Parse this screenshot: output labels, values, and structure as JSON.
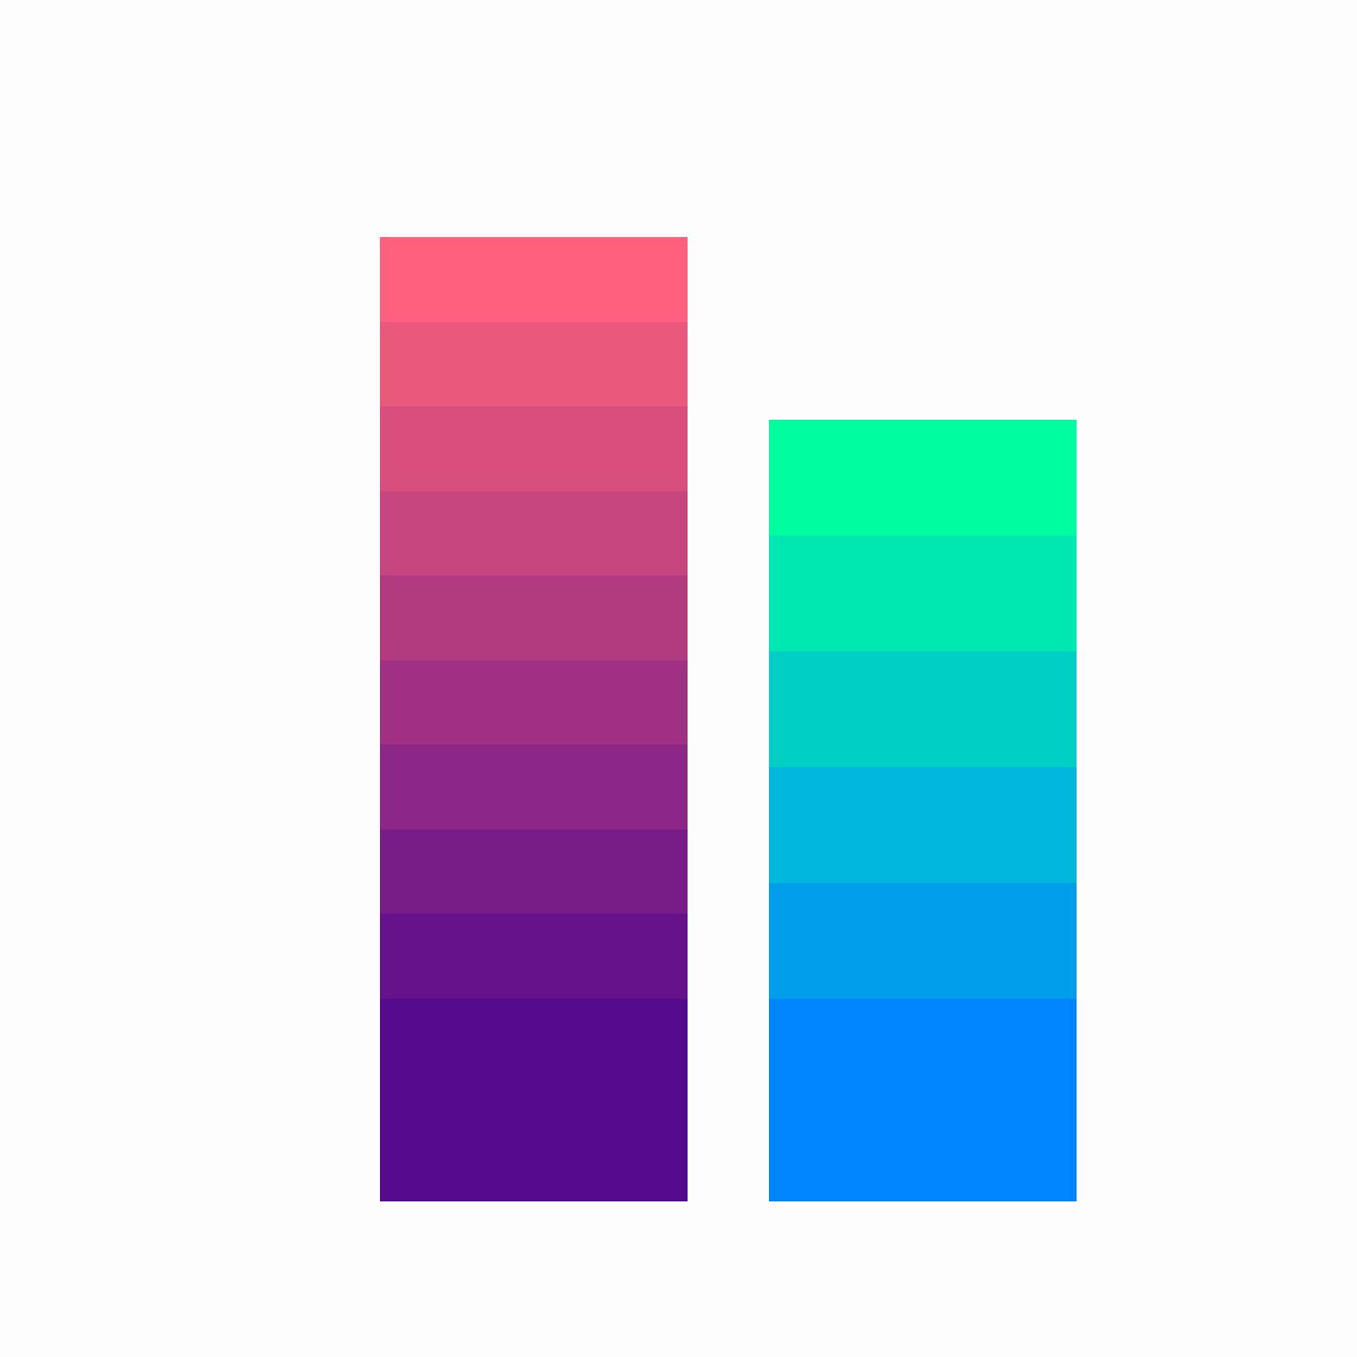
{
  "artwork": {
    "left_column": {
      "bands": [
        {
          "color": "#FF607D",
          "weight": 1
        },
        {
          "color": "#EA587C",
          "weight": 1
        },
        {
          "color": "#DA4E7D",
          "weight": 1
        },
        {
          "color": "#C7467F",
          "weight": 1
        },
        {
          "color": "#B23A7F",
          "weight": 1
        },
        {
          "color": "#A03082",
          "weight": 1
        },
        {
          "color": "#8D2787",
          "weight": 1
        },
        {
          "color": "#781D87",
          "weight": 1
        },
        {
          "color": "#66128B",
          "weight": 1
        },
        {
          "color": "#560A8E",
          "weight": 2.4
        }
      ]
    },
    "right_column": {
      "bands": [
        {
          "color": "#00FE9F",
          "weight": 1
        },
        {
          "color": "#00E8B2",
          "weight": 1
        },
        {
          "color": "#00CFC6",
          "weight": 1
        },
        {
          "color": "#00B8DB",
          "weight": 1
        },
        {
          "color": "#009EEB",
          "weight": 1
        },
        {
          "color": "#0086FF",
          "weight": 1.75
        }
      ]
    }
  }
}
